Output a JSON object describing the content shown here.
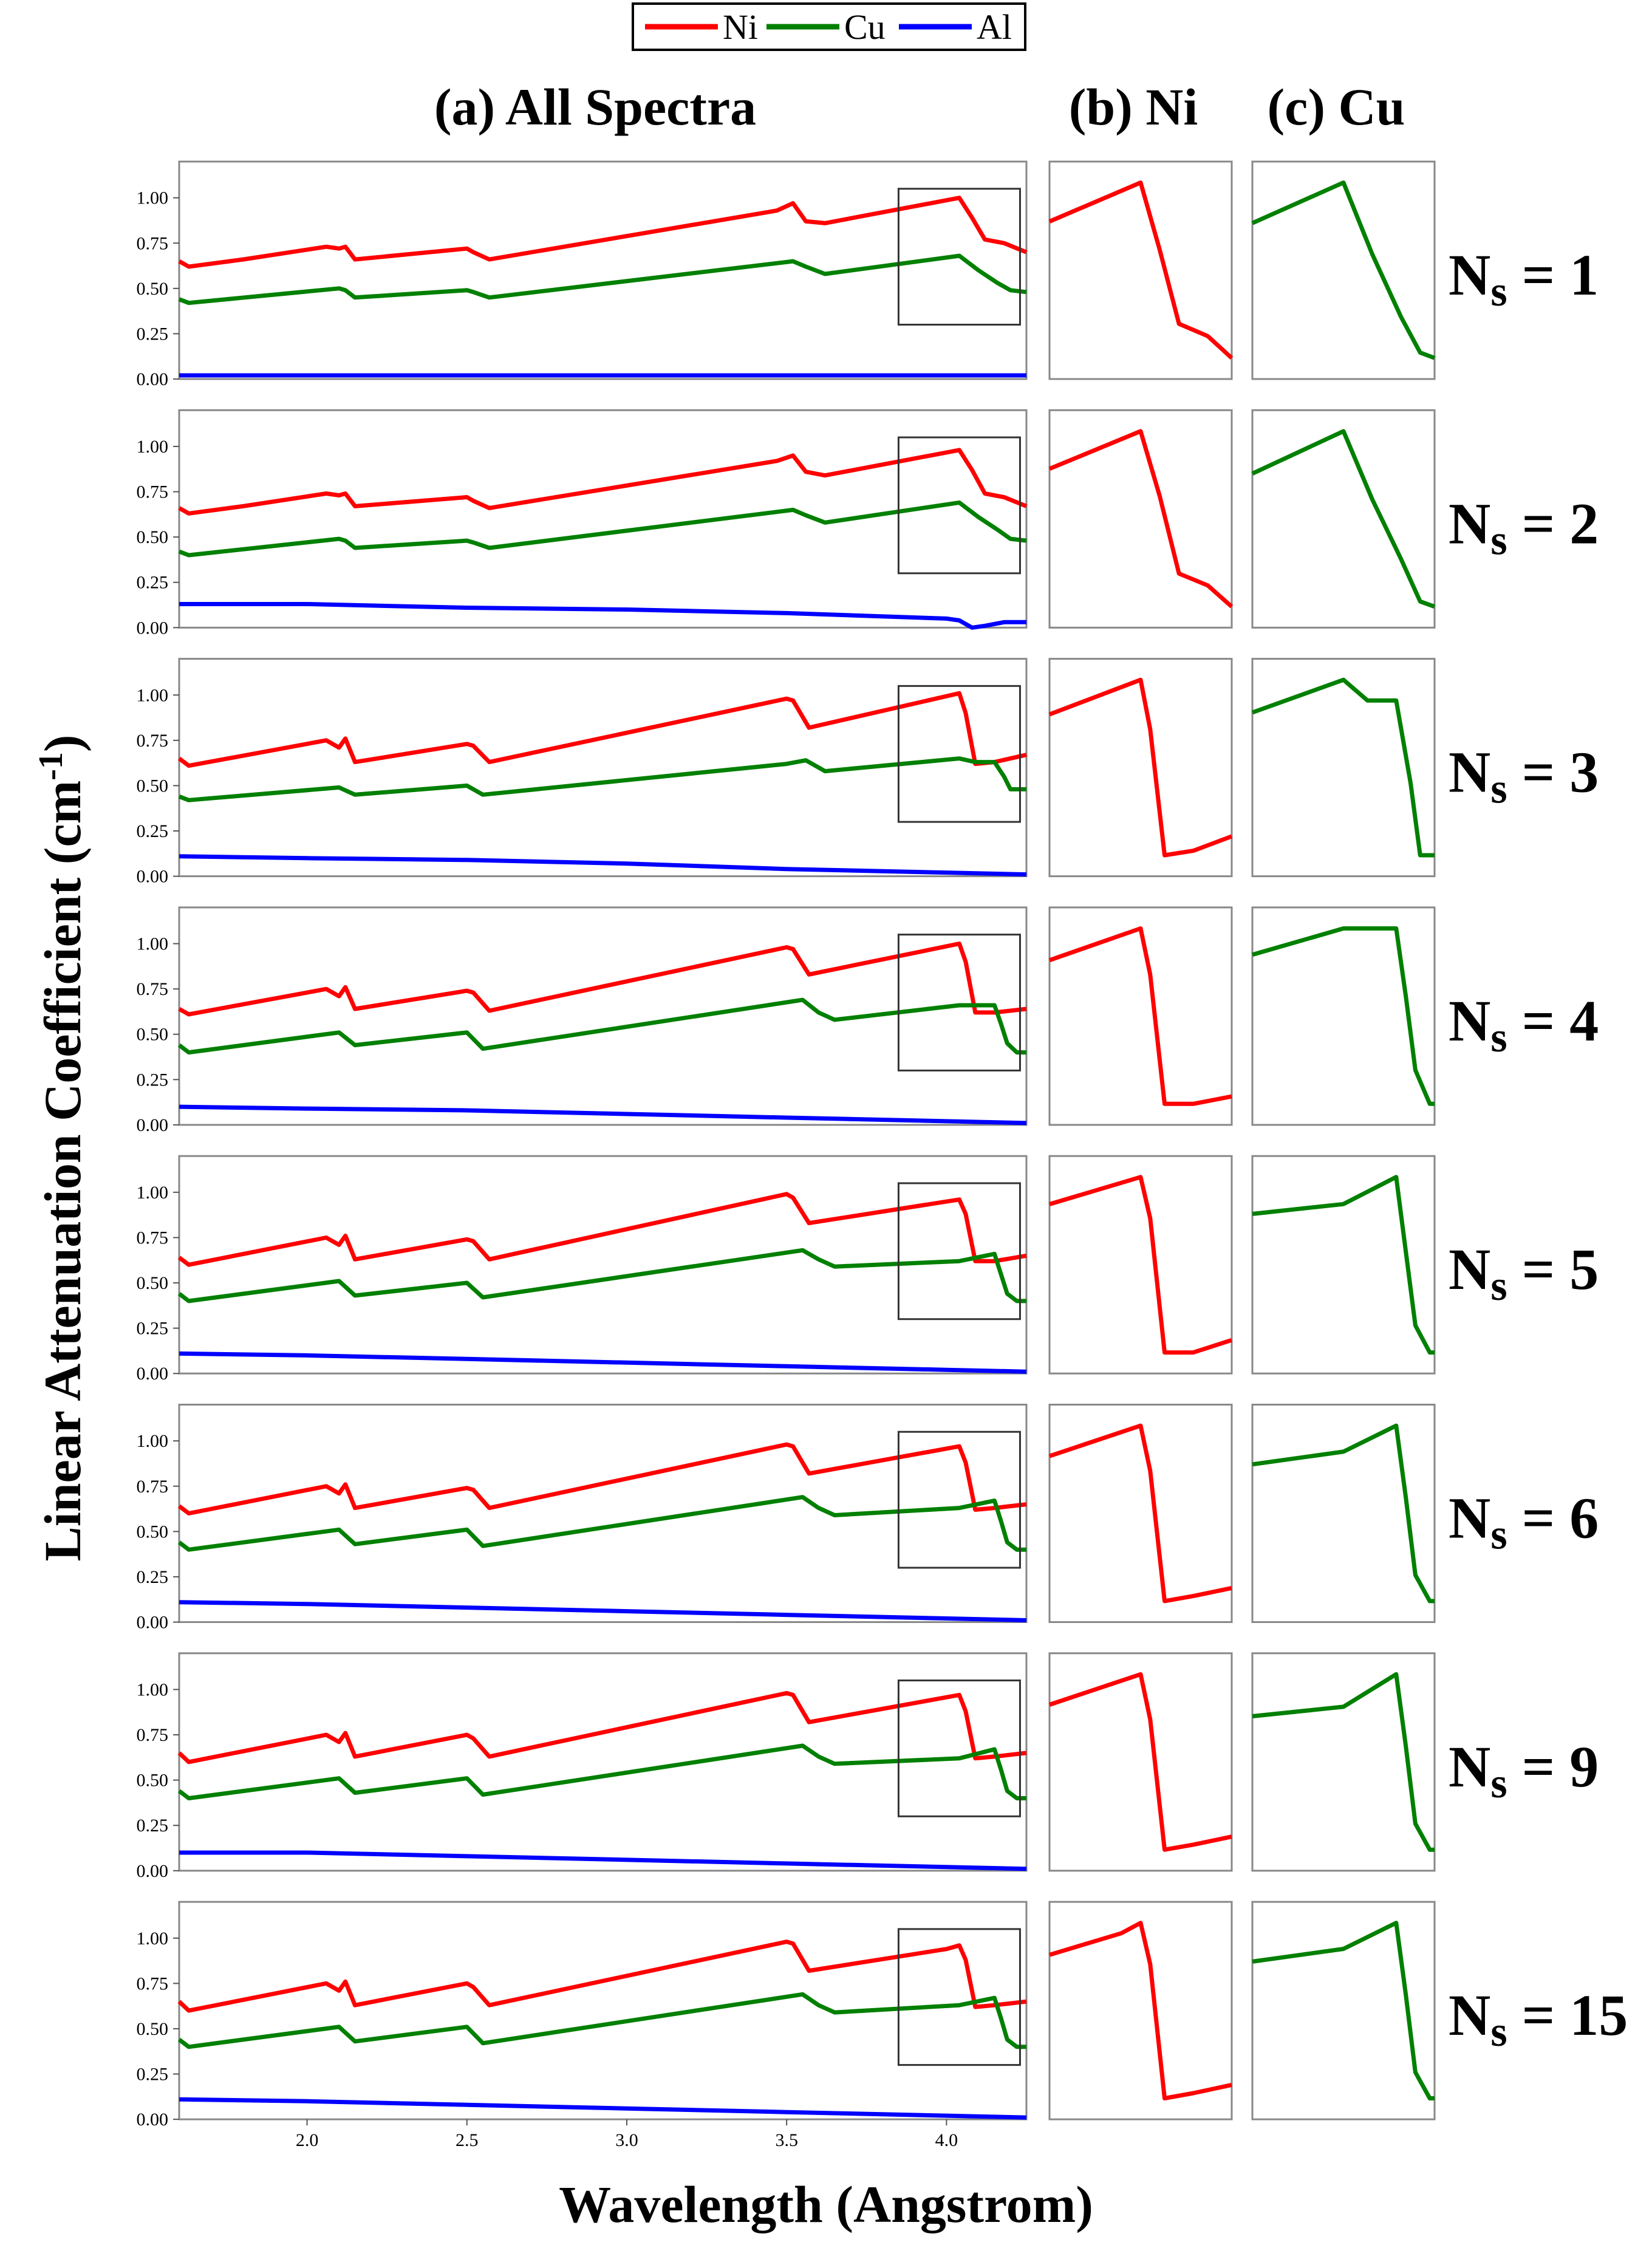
{
  "figure": {
    "ylabel": "Linear Attenuation Coefficient (cm",
    "ylabel_sup": "-1",
    "ylabel_close": ")",
    "xlabel": "Wavelength (Angstrom)",
    "panel_a_title": "(a) All Spectra",
    "panel_b_title": "(b) Ni",
    "panel_c_title": "(c) Cu",
    "x_ticks": [
      "2.0",
      "2.5",
      "3.0",
      "3.5",
      "4.0"
    ],
    "y_ticks": [
      "0.00",
      "0.25",
      "0.50",
      "0.75",
      "1.00"
    ],
    "legend": [
      {
        "name": "Ni",
        "color": "#ff0000"
      },
      {
        "name": "Cu",
        "color": "#008000"
      },
      {
        "name": "Al",
        "color": "#0000ff"
      }
    ],
    "row_label_prefix": "N",
    "row_label_sub": "s",
    "row_label_eq": " = "
  },
  "chart_data": {
    "type": "line",
    "title": "(a) All Spectra / (b) Ni / (c) Cu",
    "xlabel": "Wavelength (Angstrom)",
    "ylabel": "Linear Attenuation Coefficient (cm^-1)",
    "xlim": [
      1.6,
      4.25
    ],
    "ylim": [
      0,
      1.2
    ],
    "zoom_window": {
      "xlim": [
        3.85,
        4.23
      ],
      "ylim": [
        0.3,
        1.05
      ]
    },
    "rows": [
      {
        "ns": "1",
        "series": [
          {
            "name": "Ni",
            "x": [
              1.6,
              1.63,
              1.8,
              2.06,
              2.1,
              2.12,
              2.15,
              2.5,
              2.52,
              2.57,
              3.47,
              3.52,
              3.56,
              3.62,
              4.04,
              4.08,
              4.12,
              4.18,
              4.25
            ],
            "y": [
              0.65,
              0.62,
              0.66,
              0.73,
              0.72,
              0.73,
              0.66,
              0.72,
              0.7,
              0.66,
              0.93,
              0.97,
              0.87,
              0.86,
              1.0,
              0.89,
              0.77,
              0.75,
              0.7
            ]
          },
          {
            "name": "Cu",
            "x": [
              1.6,
              1.63,
              2.1,
              2.12,
              2.15,
              2.5,
              2.52,
              2.57,
              3.52,
              3.56,
              3.62,
              4.04,
              4.1,
              4.16,
              4.2,
              4.25
            ],
            "y": [
              0.44,
              0.42,
              0.5,
              0.49,
              0.45,
              0.49,
              0.48,
              0.45,
              0.65,
              0.62,
              0.58,
              0.68,
              0.6,
              0.53,
              0.49,
              0.48
            ]
          },
          {
            "name": "Al",
            "x": [
              1.6,
              3.0,
              4.25
            ],
            "y": [
              0.02,
              0.02,
              0.02
            ]
          }
        ]
      },
      {
        "ns": "2",
        "series": [
          {
            "name": "Ni",
            "x": [
              1.6,
              1.63,
              1.8,
              2.06,
              2.1,
              2.12,
              2.15,
              2.5,
              2.52,
              2.57,
              3.47,
              3.52,
              3.56,
              3.62,
              4.04,
              4.08,
              4.12,
              4.18,
              4.25
            ],
            "y": [
              0.66,
              0.63,
              0.67,
              0.74,
              0.73,
              0.74,
              0.67,
              0.72,
              0.7,
              0.66,
              0.92,
              0.95,
              0.86,
              0.84,
              0.98,
              0.87,
              0.74,
              0.72,
              0.67
            ]
          },
          {
            "name": "Cu",
            "x": [
              1.6,
              1.63,
              2.1,
              2.12,
              2.15,
              2.5,
              2.52,
              2.57,
              3.52,
              3.56,
              3.62,
              4.04,
              4.1,
              4.16,
              4.2,
              4.25
            ],
            "y": [
              0.42,
              0.4,
              0.49,
              0.48,
              0.44,
              0.48,
              0.47,
              0.44,
              0.65,
              0.62,
              0.58,
              0.69,
              0.61,
              0.54,
              0.49,
              0.48
            ]
          },
          {
            "name": "Al",
            "x": [
              1.6,
              2.0,
              2.5,
              3.0,
              3.5,
              4.0,
              4.04,
              4.08,
              4.12,
              4.18,
              4.25
            ],
            "y": [
              0.13,
              0.13,
              0.11,
              0.1,
              0.08,
              0.05,
              0.04,
              0.0,
              0.01,
              0.03,
              0.03
            ]
          }
        ]
      },
      {
        "ns": "3",
        "series": [
          {
            "name": "Ni",
            "x": [
              1.6,
              1.63,
              2.06,
              2.1,
              2.12,
              2.15,
              2.5,
              2.52,
              2.57,
              3.5,
              3.52,
              3.57,
              4.04,
              4.06,
              4.09,
              4.15,
              4.25
            ],
            "y": [
              0.65,
              0.61,
              0.75,
              0.71,
              0.76,
              0.63,
              0.73,
              0.72,
              0.63,
              0.98,
              0.97,
              0.82,
              1.01,
              0.9,
              0.62,
              0.63,
              0.67
            ]
          },
          {
            "name": "Cu",
            "x": [
              1.6,
              1.63,
              2.1,
              2.15,
              2.5,
              2.55,
              3.5,
              3.56,
              3.62,
              4.04,
              4.09,
              4.15,
              4.18,
              4.2,
              4.25
            ],
            "y": [
              0.44,
              0.42,
              0.49,
              0.45,
              0.5,
              0.45,
              0.62,
              0.64,
              0.58,
              0.65,
              0.63,
              0.63,
              0.55,
              0.48,
              0.48
            ]
          },
          {
            "name": "Al",
            "x": [
              1.6,
              2.0,
              2.5,
              3.0,
              3.5,
              4.0,
              4.25
            ],
            "y": [
              0.11,
              0.1,
              0.09,
              0.07,
              0.04,
              0.02,
              0.01
            ]
          }
        ]
      },
      {
        "ns": "4",
        "series": [
          {
            "name": "Ni",
            "x": [
              1.6,
              1.63,
              2.06,
              2.1,
              2.12,
              2.15,
              2.5,
              2.52,
              2.57,
              3.5,
              3.52,
              3.57,
              4.04,
              4.06,
              4.09,
              4.15,
              4.25
            ],
            "y": [
              0.64,
              0.61,
              0.75,
              0.71,
              0.76,
              0.64,
              0.74,
              0.73,
              0.63,
              0.98,
              0.97,
              0.83,
              1.0,
              0.9,
              0.62,
              0.62,
              0.64
            ]
          },
          {
            "name": "Cu",
            "x": [
              1.6,
              1.63,
              2.1,
              2.15,
              2.5,
              2.55,
              3.55,
              3.6,
              3.65,
              4.04,
              4.15,
              4.17,
              4.19,
              4.22,
              4.25
            ],
            "y": [
              0.44,
              0.4,
              0.51,
              0.44,
              0.51,
              0.42,
              0.69,
              0.62,
              0.58,
              0.66,
              0.66,
              0.56,
              0.45,
              0.4,
              0.4
            ]
          },
          {
            "name": "Al",
            "x": [
              1.6,
              2.0,
              2.5,
              3.0,
              3.5,
              4.0,
              4.25
            ],
            "y": [
              0.1,
              0.09,
              0.08,
              0.06,
              0.04,
              0.02,
              0.01
            ]
          }
        ]
      },
      {
        "ns": "5",
        "series": [
          {
            "name": "Ni",
            "x": [
              1.6,
              1.63,
              2.06,
              2.1,
              2.12,
              2.15,
              2.5,
              2.52,
              2.57,
              3.5,
              3.52,
              3.57,
              4.04,
              4.06,
              4.09,
              4.15,
              4.25
            ],
            "y": [
              0.64,
              0.6,
              0.75,
              0.71,
              0.76,
              0.63,
              0.74,
              0.73,
              0.63,
              0.99,
              0.97,
              0.83,
              0.96,
              0.88,
              0.62,
              0.62,
              0.65
            ]
          },
          {
            "name": "Cu",
            "x": [
              1.6,
              1.63,
              2.1,
              2.15,
              2.5,
              2.55,
              3.55,
              3.6,
              3.65,
              4.04,
              4.15,
              4.17,
              4.19,
              4.22,
              4.25
            ],
            "y": [
              0.44,
              0.4,
              0.51,
              0.43,
              0.5,
              0.42,
              0.68,
              0.63,
              0.59,
              0.62,
              0.66,
              0.55,
              0.44,
              0.4,
              0.4
            ]
          },
          {
            "name": "Al",
            "x": [
              1.6,
              2.0,
              2.5,
              3.0,
              3.5,
              4.0,
              4.25
            ],
            "y": [
              0.11,
              0.1,
              0.08,
              0.06,
              0.04,
              0.02,
              0.01
            ]
          }
        ]
      },
      {
        "ns": "6",
        "series": [
          {
            "name": "Ni",
            "x": [
              1.6,
              1.63,
              2.06,
              2.1,
              2.12,
              2.15,
              2.5,
              2.52,
              2.57,
              3.5,
              3.52,
              3.57,
              4.04,
              4.06,
              4.09,
              4.15,
              4.25
            ],
            "y": [
              0.64,
              0.6,
              0.75,
              0.71,
              0.76,
              0.63,
              0.74,
              0.73,
              0.63,
              0.98,
              0.97,
              0.82,
              0.97,
              0.88,
              0.62,
              0.63,
              0.65
            ]
          },
          {
            "name": "Cu",
            "x": [
              1.6,
              1.63,
              2.1,
              2.15,
              2.5,
              2.55,
              3.55,
              3.6,
              3.65,
              4.04,
              4.15,
              4.17,
              4.19,
              4.22,
              4.25
            ],
            "y": [
              0.44,
              0.4,
              0.51,
              0.43,
              0.51,
              0.42,
              0.69,
              0.63,
              0.59,
              0.63,
              0.67,
              0.56,
              0.44,
              0.4,
              0.4
            ]
          },
          {
            "name": "Al",
            "x": [
              1.6,
              2.0,
              2.5,
              3.0,
              3.5,
              4.0,
              4.25
            ],
            "y": [
              0.11,
              0.1,
              0.08,
              0.06,
              0.04,
              0.02,
              0.01
            ]
          }
        ]
      },
      {
        "ns": "9",
        "series": [
          {
            "name": "Ni",
            "x": [
              1.6,
              1.63,
              2.06,
              2.1,
              2.12,
              2.15,
              2.5,
              2.52,
              2.57,
              3.5,
              3.52,
              3.57,
              4.04,
              4.06,
              4.09,
              4.15,
              4.25
            ],
            "y": [
              0.65,
              0.6,
              0.75,
              0.71,
              0.76,
              0.63,
              0.75,
              0.73,
              0.63,
              0.98,
              0.97,
              0.82,
              0.97,
              0.88,
              0.62,
              0.63,
              0.65
            ]
          },
          {
            "name": "Cu",
            "x": [
              1.6,
              1.63,
              2.1,
              2.15,
              2.5,
              2.55,
              3.55,
              3.6,
              3.65,
              4.04,
              4.15,
              4.17,
              4.19,
              4.22,
              4.25
            ],
            "y": [
              0.44,
              0.4,
              0.51,
              0.43,
              0.51,
              0.42,
              0.69,
              0.63,
              0.59,
              0.62,
              0.67,
              0.56,
              0.44,
              0.4,
              0.4
            ]
          },
          {
            "name": "Al",
            "x": [
              1.6,
              2.0,
              2.5,
              3.0,
              3.5,
              4.0,
              4.25
            ],
            "y": [
              0.1,
              0.1,
              0.08,
              0.06,
              0.04,
              0.02,
              0.01
            ]
          }
        ]
      },
      {
        "ns": "15",
        "series": [
          {
            "name": "Ni",
            "x": [
              1.6,
              1.63,
              2.06,
              2.1,
              2.12,
              2.15,
              2.5,
              2.52,
              2.57,
              3.5,
              3.52,
              3.57,
              4.0,
              4.04,
              4.06,
              4.09,
              4.15,
              4.25
            ],
            "y": [
              0.65,
              0.6,
              0.75,
              0.71,
              0.76,
              0.63,
              0.75,
              0.73,
              0.63,
              0.98,
              0.97,
              0.82,
              0.94,
              0.96,
              0.88,
              0.62,
              0.63,
              0.65
            ]
          },
          {
            "name": "Cu",
            "x": [
              1.6,
              1.63,
              2.1,
              2.15,
              2.5,
              2.55,
              3.55,
              3.6,
              3.65,
              4.04,
              4.15,
              4.17,
              4.19,
              4.22,
              4.25
            ],
            "y": [
              0.44,
              0.4,
              0.51,
              0.43,
              0.51,
              0.42,
              0.69,
              0.63,
              0.59,
              0.63,
              0.67,
              0.56,
              0.44,
              0.4,
              0.4
            ]
          },
          {
            "name": "Al",
            "x": [
              1.6,
              2.0,
              2.5,
              3.0,
              3.5,
              4.0,
              4.25
            ],
            "y": [
              0.11,
              0.1,
              0.08,
              0.06,
              0.04,
              0.02,
              0.01
            ]
          }
        ]
      }
    ]
  }
}
